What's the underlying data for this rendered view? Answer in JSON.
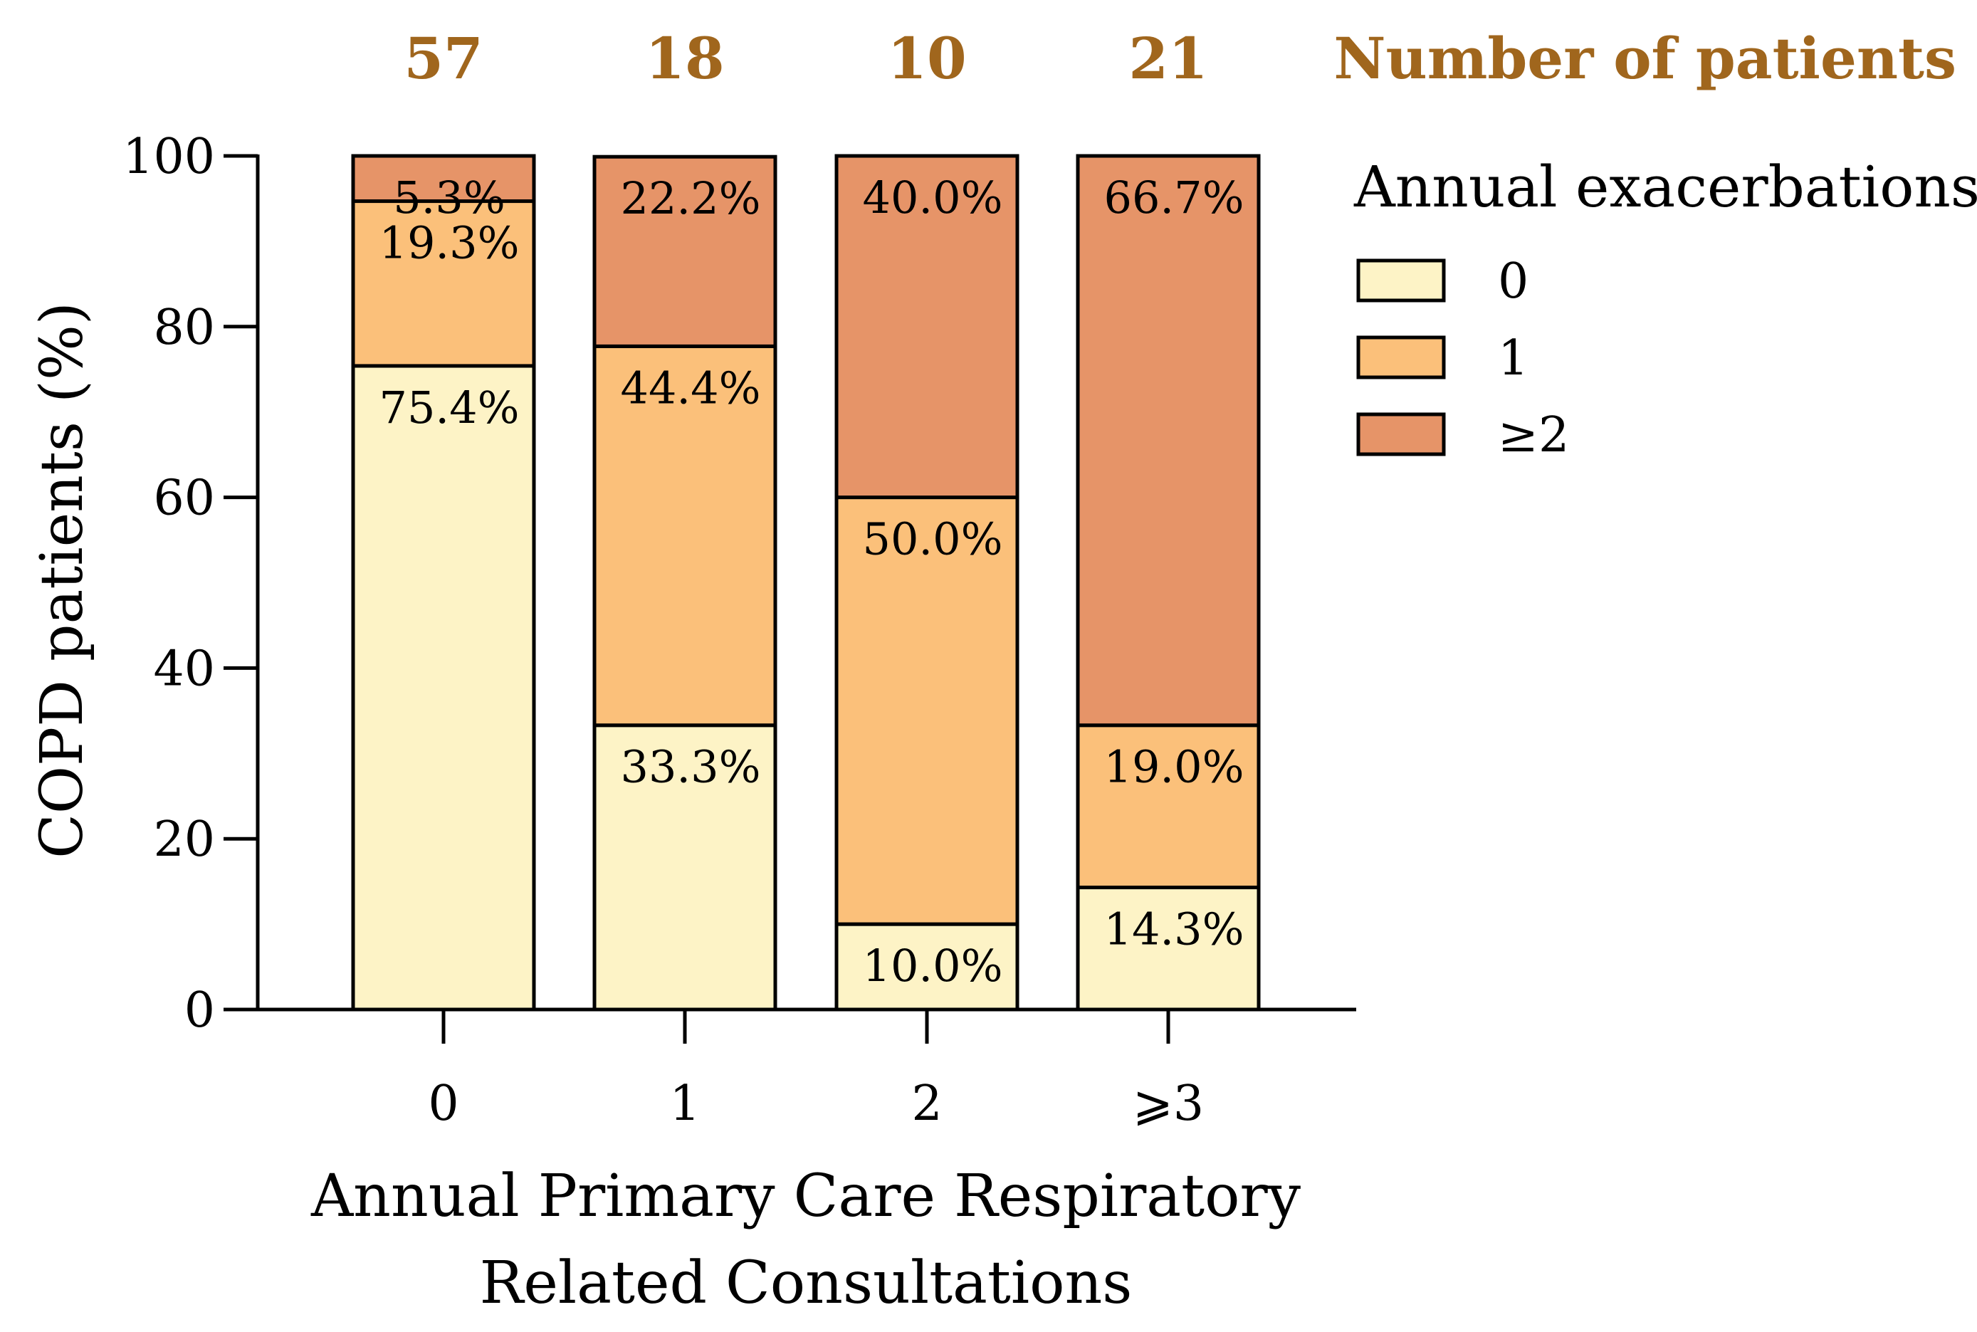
{
  "chart_data": {
    "type": "bar",
    "stacked": true,
    "categories": [
      "0",
      "1",
      "2",
      "⩾3"
    ],
    "series": [
      {
        "name": "0",
        "values": [
          75.4,
          33.3,
          10.0,
          14.3
        ],
        "labels": [
          "75.4%",
          "33.3%",
          "10.0%",
          "14.3%"
        ],
        "color": "#fdf3c6"
      },
      {
        "name": "1",
        "values": [
          19.3,
          44.4,
          50.0,
          19.0
        ],
        "labels": [
          "19.3%",
          "44.4%",
          "50.0%",
          "19.0%"
        ],
        "color": "#fbc07a"
      },
      {
        "name": "≥2",
        "values": [
          5.3,
          22.2,
          40.0,
          66.7
        ],
        "labels": [
          "5.3%",
          "22.2%",
          "40.0%",
          "66.7%"
        ],
        "color": "#e69468"
      }
    ],
    "counts": [
      "57",
      "18",
      "10",
      "21"
    ],
    "counts_title": "Number of patients",
    "counts_color": "#a0661d",
    "legend_title": "Annual exacerbations",
    "ylabel": "COPD patients (%)",
    "xlabel_lines": [
      "Annual Primary Care Respiratory",
      "Related Consultations"
    ],
    "ylim": [
      0,
      100
    ],
    "yticks": [
      0,
      20,
      40,
      60,
      80,
      100
    ],
    "grid": false,
    "legend_position": "right"
  }
}
